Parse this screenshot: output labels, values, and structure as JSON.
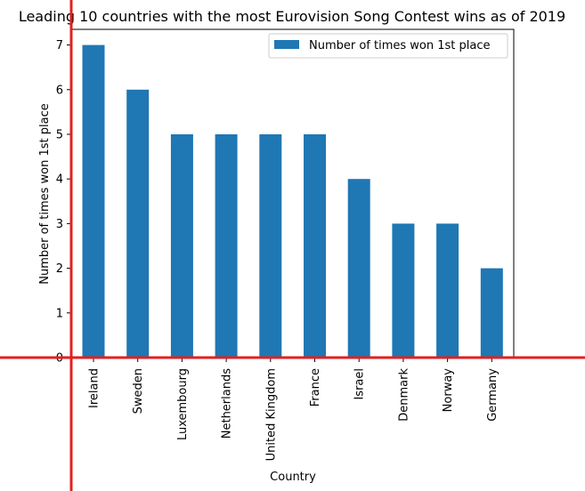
{
  "chart_data": {
    "type": "bar",
    "title": "Leading 10 countries with the most Eurovision Song Contest wins as of 2019",
    "xlabel": "Country",
    "ylabel": "Number of times won 1st place",
    "categories": [
      "Ireland",
      "Sweden",
      "Luxembourg",
      "Netherlands",
      "United Kingdom",
      "France",
      "Israel",
      "Denmark",
      "Norway",
      "Germany"
    ],
    "series": [
      {
        "name": "Number of times won 1st place",
        "values": [
          7,
          6,
          5,
          5,
          5,
          5,
          4,
          3,
          3,
          2
        ]
      }
    ],
    "ylim": [
      0,
      7.35
    ],
    "yticks": [
      0,
      1,
      2,
      3,
      4,
      5,
      6,
      7
    ],
    "grid": false,
    "legend_position": "top-right",
    "colors": {
      "bar": "#1f77b4",
      "annotation_line": "#e02020"
    }
  }
}
